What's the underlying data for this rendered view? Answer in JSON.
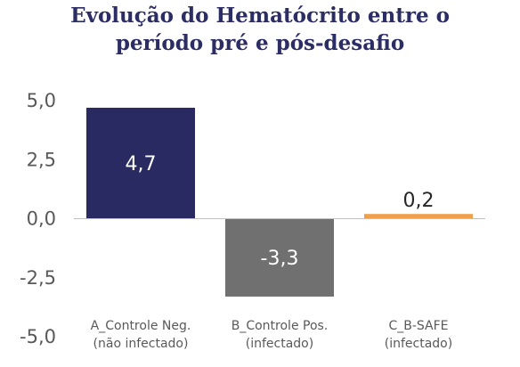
{
  "title": {
    "line1": "Evolução do Hematócrito entre o",
    "line2": "período pré e pós-desafio"
  },
  "chart_data": {
    "type": "bar",
    "title": "Evolução do Hematócrito entre o período pré e pós-desafio",
    "categories": [
      [
        "A_Controle Neg.",
        "(não infectado)"
      ],
      [
        "B_Controle Pos.",
        "(infectado)"
      ],
      [
        "C_B-SAFE",
        "(infectado)"
      ]
    ],
    "values": [
      4.7,
      -3.3,
      0.2
    ],
    "data_labels": [
      "4,7",
      "-3,3",
      "0,2"
    ],
    "bar_colors": [
      "#282a61",
      "#707070",
      "#f0a04b"
    ],
    "label_colors": [
      "#ffffff",
      "#ffffff",
      "#262626"
    ],
    "ylim": [
      -5,
      5
    ],
    "yticks": [
      5,
      2.5,
      0,
      -2.5,
      -5
    ],
    "ytick_labels": [
      "5,0",
      "2,5",
      "0,0",
      "-2,5",
      "-5,0"
    ],
    "grid": false,
    "xlabel": "",
    "ylabel": ""
  }
}
